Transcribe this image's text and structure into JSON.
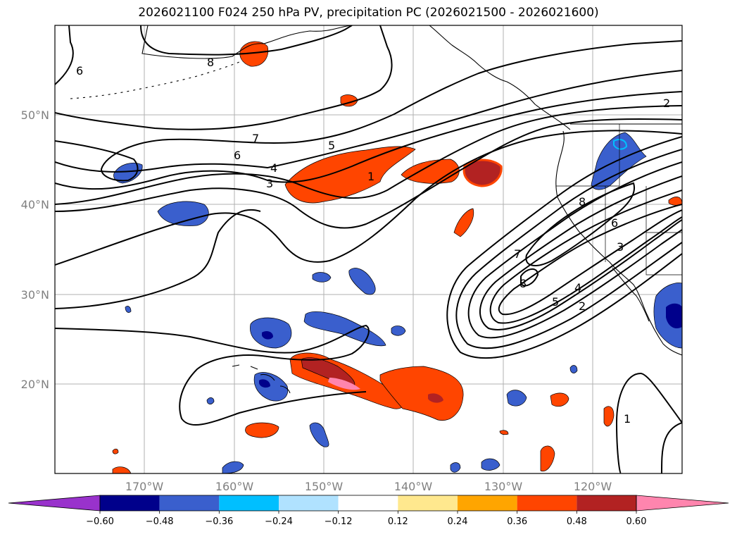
{
  "title": "2026021100 F024 250 hPa PV, precipitation PC (2026021500 - 2026021600)",
  "longitude_labels": [
    "170°W",
    "160°W",
    "150°W",
    "140°W",
    "130°W",
    "120°W"
  ],
  "latitude_labels": [
    "50°N",
    "40°N",
    "30°N",
    "20°N"
  ],
  "colorbar": {
    "ticks": [
      "−0.60",
      "−0.48",
      "−0.36",
      "−0.24",
      "−0.12",
      "0.12",
      "0.24",
      "0.36",
      "0.48",
      "0.60"
    ],
    "colors": [
      "#9932CC",
      "#00008B",
      "#3A5FCD",
      "#00BFFF",
      "#B0E2FF",
      "#FFFFFF",
      "#FFE88E",
      "#FFA500",
      "#FF4500",
      "#B22222",
      "#FF85AE"
    ]
  },
  "contour_labels": [
    {
      "name": "pv-label-8-alaska",
      "text": "8"
    },
    {
      "name": "pv-label-6-west",
      "text": "6"
    },
    {
      "name": "pv-label-7",
      "text": "7"
    },
    {
      "name": "pv-label-6",
      "text": "6"
    },
    {
      "name": "pv-label-5",
      "text": "5"
    },
    {
      "name": "pv-label-4",
      "text": "4"
    },
    {
      "name": "pv-label-3",
      "text": "3"
    },
    {
      "name": "pv-label-1",
      "text": "1"
    },
    {
      "name": "pv-label-2-canada",
      "text": "2"
    },
    {
      "name": "pv-label-8-california",
      "text": "8"
    },
    {
      "name": "pv-label-6-california",
      "text": "6"
    },
    {
      "name": "pv-label-3-california",
      "text": "3"
    },
    {
      "name": "pv-label-7-trough",
      "text": "7"
    },
    {
      "name": "pv-label-8-trough",
      "text": "8"
    },
    {
      "name": "pv-label-4-trough",
      "text": "4"
    },
    {
      "name": "pv-label-5-trough",
      "text": "5"
    },
    {
      "name": "pv-label-2-trough",
      "text": "2"
    },
    {
      "name": "pv-label-1-south",
      "text": "1"
    }
  ]
}
